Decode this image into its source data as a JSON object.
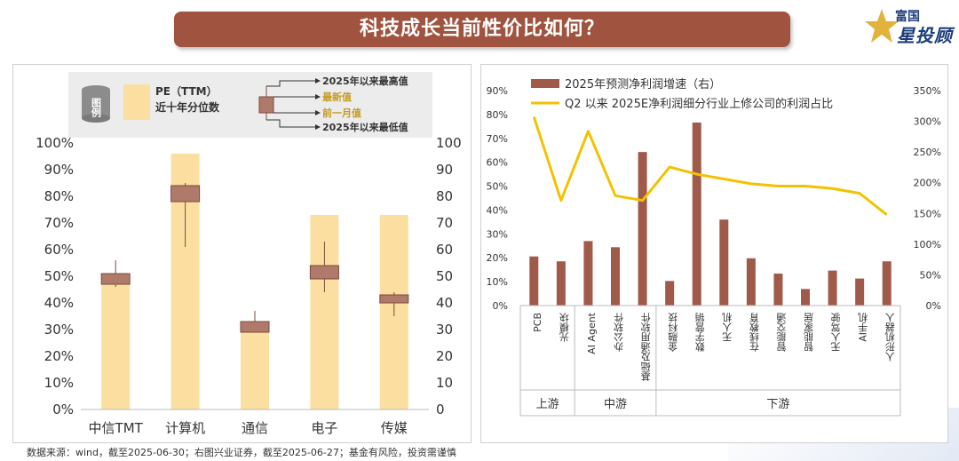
{
  "title": "科技成长当前性价比如何？",
  "logo": {
    "small": "富国",
    "big": "星投顾"
  },
  "source": "数据来源：wind，截至2025-06-30；右图兴业证券，截至2025-06-27；基金有风险，投资需谨慎",
  "legend_left": {
    "tag": "图例",
    "pe_label_1": "PE（TTM）",
    "pe_label_2": "近十年分位数",
    "max_label": "2025年以来最高值",
    "latest_label": "最新值",
    "month_ago_label": "前一月值",
    "min_label": "2025年以来最低值"
  },
  "colors": {
    "bar_light": "#fbdfa0",
    "candle": "#b07a6a",
    "candle_border": "#7a4a3a",
    "bar_dark": "#a05a4a",
    "line": "#f2c200"
  },
  "chart_data": [
    {
      "type": "bar",
      "title": "",
      "categories": [
        "中信TMT",
        "计算机",
        "通信",
        "电子",
        "传媒"
      ],
      "values": [
        48,
        96,
        30,
        73,
        73
      ],
      "candles": [
        {
          "latest": 51,
          "month_ago": 47,
          "max": 56,
          "min": 46
        },
        {
          "latest": 84,
          "month_ago": 78,
          "max": 85,
          "min": 61
        },
        {
          "latest": 33,
          "month_ago": 29,
          "max": 37,
          "min": 29
        },
        {
          "latest": 54,
          "month_ago": 49,
          "max": 63,
          "min": 44
        },
        {
          "latest": 43,
          "month_ago": 40,
          "max": 44,
          "min": 35
        }
      ],
      "ylim_left": [
        0,
        100
      ],
      "yticks_left": [
        "0%",
        "10%",
        "20%",
        "30%",
        "40%",
        "50%",
        "60%",
        "70%",
        "80%",
        "90%",
        "100%"
      ],
      "ylim_right": [
        0,
        100
      ],
      "yticks_right": [
        "0",
        "10",
        "20",
        "30",
        "40",
        "50",
        "60",
        "70",
        "80",
        "90",
        "100"
      ]
    },
    {
      "type": "bar+line",
      "categories": [
        "PCB",
        "光模块",
        "AI Agent",
        "办公软件",
        "基础及通用软件",
        "金融科技",
        "数字营销",
        "无人机",
        "在线教育",
        "智能交通",
        "智能家居",
        "无人驾驶",
        "AI手机",
        "人形机器人"
      ],
      "series": [
        {
          "name": "2025年预测净利润增速（右）",
          "type": "bar",
          "axis": "right",
          "values": [
            80,
            72,
            105,
            95,
            250,
            40,
            298,
            140,
            77,
            52,
            27,
            57,
            44,
            72
          ]
        },
        {
          "name": "Q2 以来 2025E净利润细分行业上修公司的利润占比",
          "type": "line",
          "axis": "left",
          "values": [
            79,
            44,
            73,
            46,
            44,
            58,
            55,
            53,
            51,
            50,
            50,
            49,
            47,
            38
          ]
        }
      ],
      "ylim_left": [
        0,
        90
      ],
      "yticks_left": [
        "0%",
        "10%",
        "20%",
        "30%",
        "40%",
        "50%",
        "60%",
        "70%",
        "80%",
        "90%"
      ],
      "ylim_right": [
        0,
        350
      ],
      "yticks_right": [
        "0%",
        "50%",
        "100%",
        "150%",
        "200%",
        "250%",
        "300%",
        "350%"
      ],
      "groups": [
        {
          "label": "上游",
          "count": 2
        },
        {
          "label": "中游",
          "count": 3
        },
        {
          "label": "下游",
          "count": 9
        }
      ]
    }
  ]
}
